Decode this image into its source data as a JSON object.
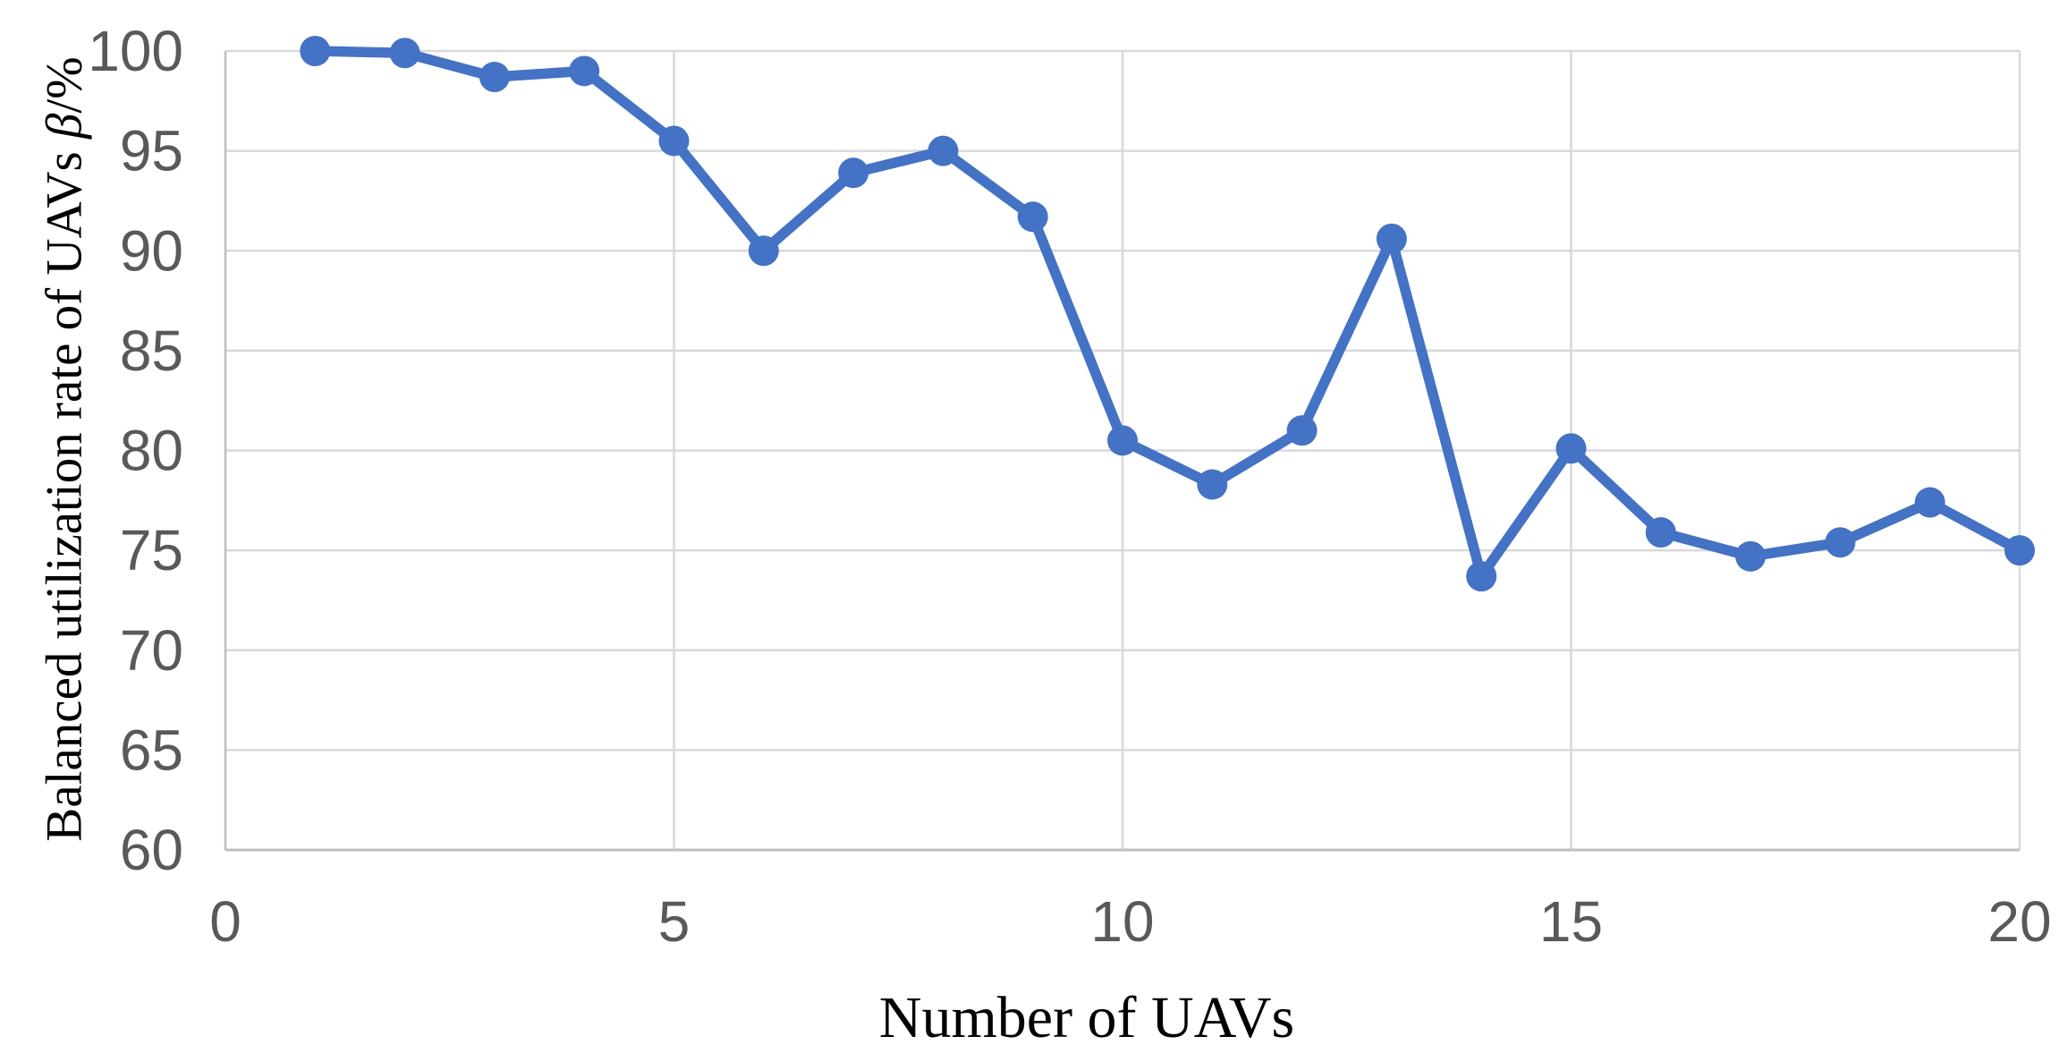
{
  "chart_data": {
    "type": "line",
    "title": "",
    "xlabel": "Number of UAVs",
    "ylabel": "Balanced utilization rate of UAVs β/%",
    "ylabel_parts": {
      "prefix": "Balanced utilization rate of UAVs ",
      "symbol": "β",
      "suffix": "/%"
    },
    "x": [
      1,
      2,
      3,
      4,
      5,
      6,
      7,
      8,
      9,
      10,
      11,
      12,
      13,
      14,
      15,
      16,
      17,
      18,
      19,
      20
    ],
    "series": [
      {
        "name": "Balanced utilization rate of UAVs",
        "values": [
          100,
          99.9,
          98.7,
          99,
          95.5,
          90,
          93.9,
          95,
          91.7,
          80.5,
          78.3,
          81,
          90.6,
          73.7,
          80.1,
          75.9,
          74.7,
          75.4,
          77.4,
          75
        ]
      }
    ],
    "xlim": [
      0,
      20
    ],
    "ylim": [
      60,
      100
    ],
    "x_ticks": [
      0,
      5,
      10,
      15,
      20
    ],
    "y_ticks": [
      60,
      65,
      70,
      75,
      80,
      85,
      90,
      95,
      100
    ],
    "grid": true,
    "legend": false,
    "colors": {
      "series": "#4472C4",
      "gridline": "#D9D9D9",
      "axis_line": "#BFBFBF",
      "tick_label": "#595959",
      "title_text": "#000000"
    }
  }
}
